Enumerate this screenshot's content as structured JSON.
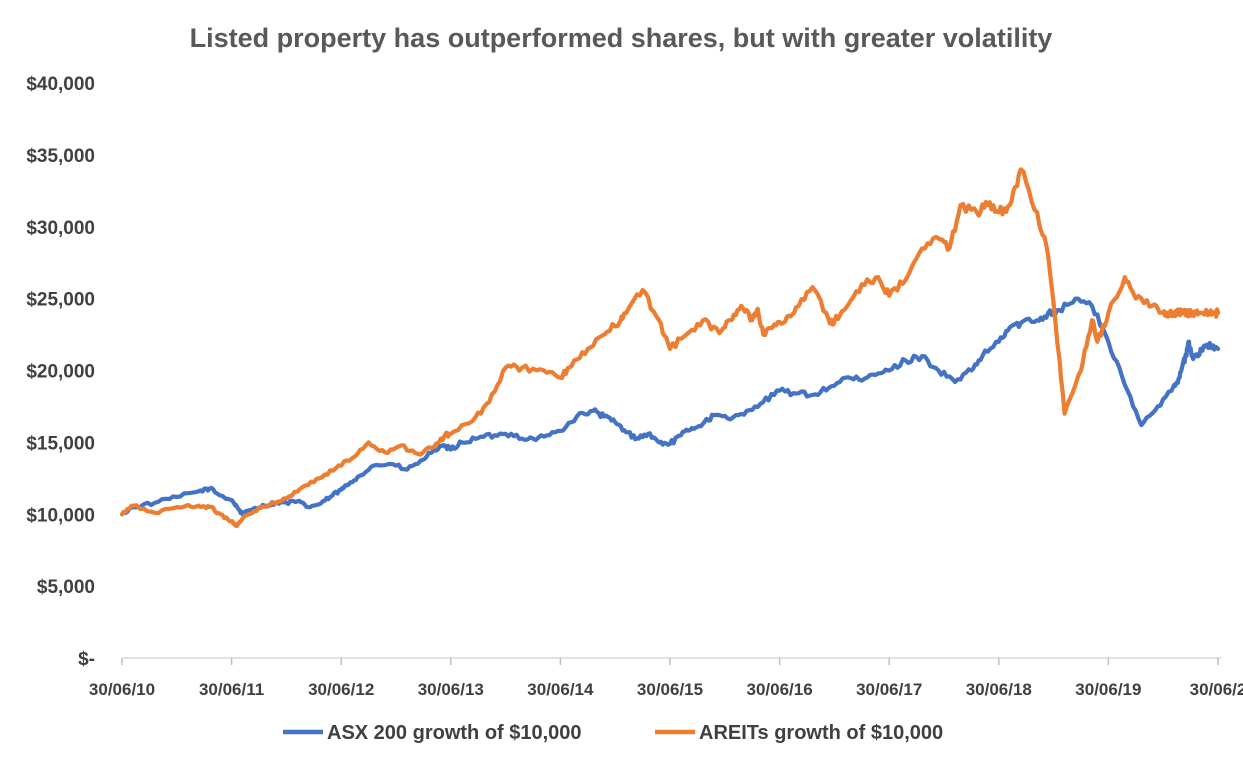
{
  "chart_data": {
    "type": "line",
    "title": "Listed property has outperformed shares, but with greater volatility",
    "xlabel": "",
    "ylabel": "",
    "ylim": [
      0,
      40000
    ],
    "yticks": [
      0,
      5000,
      10000,
      15000,
      20000,
      25000,
      30000,
      35000,
      40000
    ],
    "ytick_labels": [
      "$-",
      "$5,000",
      "$10,000",
      "$15,000",
      "$20,000",
      "$25,000",
      "$30,000",
      "$35,000",
      "$40,000"
    ],
    "xlim": [
      2010.0,
      2020.0
    ],
    "xticks": [
      2010,
      2011,
      2012,
      2013,
      2014,
      2015,
      2016,
      2017,
      2018,
      2019,
      2020
    ],
    "xtick_labels": [
      "30/06/10",
      "30/06/11",
      "30/06/12",
      "30/06/13",
      "30/06/14",
      "30/06/15",
      "30/06/16",
      "30/06/17",
      "30/06/18",
      "30/06/19",
      "30/06/2"
    ],
    "gridlines": false,
    "legend_position": "bottom",
    "series": [
      {
        "name": "ASX 200 growth of $10,000",
        "color": "#4472C4",
        "x": [
          2010.0,
          2010.1,
          2010.3,
          2010.5,
          2010.7,
          2010.8,
          2010.9,
          2011.0,
          2011.05,
          2011.1,
          2011.2,
          2011.3,
          2011.4,
          2011.5,
          2011.6,
          2011.7,
          2011.8,
          2011.9,
          2012.0,
          2012.05,
          2012.15,
          2012.3,
          2012.45,
          2012.6,
          2012.75,
          2012.85,
          2012.95,
          2013.0,
          2013.1,
          2013.25,
          2013.4,
          2013.55,
          2013.7,
          2013.85,
          2014.0,
          2014.15,
          2014.3,
          2014.4,
          2014.5,
          2014.6,
          2014.7,
          2014.8,
          2014.9,
          2015.0,
          2015.1,
          2015.2,
          2015.3,
          2015.4,
          2015.55,
          2015.7,
          2015.85,
          2016.0,
          2016.15,
          2016.3,
          2016.45,
          2016.6,
          2016.75,
          2016.9,
          2017.0,
          2017.15,
          2017.3,
          2017.45,
          2017.6,
          2017.75,
          2017.85,
          2018.0,
          2018.1,
          2018.2,
          2018.35,
          2018.45,
          2018.55,
          2018.7,
          2018.85,
          2019.0,
          2019.15,
          2019.3,
          2019.45,
          2019.6,
          2019.65,
          2019.68,
          2019.71,
          2019.73,
          2019.76,
          2019.8,
          2019.85,
          2019.9,
          2019.95,
          2020.0
        ],
        "values": [
          10000,
          10500,
          10800,
          11200,
          11600,
          11800,
          11300,
          11000,
          10500,
          10000,
          10400,
          10600,
          10800,
          10800,
          10900,
          10500,
          10700,
          11200,
          11700,
          12000,
          12600,
          13400,
          13500,
          13100,
          13800,
          14500,
          14700,
          14500,
          15000,
          15300,
          15500,
          15600,
          15200,
          15400,
          15800,
          16800,
          17200,
          16800,
          16400,
          15700,
          15300,
          15600,
          15000,
          14900,
          15500,
          16000,
          16300,
          16900,
          16600,
          17200,
          17800,
          18600,
          18400,
          18300,
          18800,
          19500,
          19300,
          19800,
          20000,
          20700,
          21000,
          20000,
          19200,
          20000,
          21000,
          22000,
          23000,
          23300,
          23500,
          24000,
          24200,
          25000,
          24500,
          22000,
          19000,
          16200,
          17500,
          19000,
          19500,
          20500,
          21000,
          22000,
          21000,
          21000,
          21500,
          21800,
          21600,
          21500
        ]
      },
      {
        "name": "AREITs growth of $10,000",
        "color": "#ED7D31",
        "x": [
          2010.0,
          2010.1,
          2010.3,
          2010.5,
          2010.7,
          2010.8,
          2010.9,
          2011.0,
          2011.05,
          2011.1,
          2011.2,
          2011.35,
          2011.5,
          2011.65,
          2011.8,
          2011.95,
          2012.1,
          2012.25,
          2012.4,
          2012.55,
          2012.7,
          2012.85,
          2012.9,
          2012.95,
          2013.0,
          2013.2,
          2013.35,
          2013.5,
          2013.65,
          2013.85,
          2014.0,
          2014.1,
          2014.25,
          2014.4,
          2014.55,
          2014.6,
          2014.75,
          2014.9,
          2015.0,
          2015.15,
          2015.3,
          2015.45,
          2015.55,
          2015.65,
          2015.75,
          2015.8,
          2015.85,
          2015.95,
          2016.05,
          2016.15,
          2016.3,
          2016.45,
          2016.5,
          2016.6,
          2016.75,
          2016.9,
          2017.0,
          2017.15,
          2017.3,
          2017.45,
          2017.55,
          2017.65,
          2017.8,
          2017.9,
          2018.0,
          2018.1,
          2018.2,
          2018.35,
          2018.45,
          2018.55,
          2018.6,
          2018.75,
          2018.85,
          2018.9,
          2019.0,
          2019.15,
          2019.25,
          2019.4,
          2019.5,
          2019.55,
          2019.6,
          2019.63,
          2019.65,
          2019.68,
          2019.71,
          2019.73,
          2019.76,
          2019.8,
          2019.85,
          2019.9,
          2019.95,
          2020.0
        ],
        "values": [
          10000,
          10600,
          10100,
          10500,
          10600,
          10500,
          10000,
          9500,
          9200,
          9700,
          10200,
          10700,
          11100,
          11900,
          12500,
          13200,
          13900,
          15000,
          14300,
          14800,
          14200,
          14700,
          15100,
          15500,
          15600,
          16500,
          17800,
          20200,
          20200,
          20000,
          19500,
          20300,
          21500,
          22500,
          23500,
          24000,
          25600,
          23500,
          21500,
          22500,
          23500,
          22600,
          23500,
          24500,
          23500,
          24300,
          22500,
          23200,
          23400,
          24400,
          25800,
          23500,
          23400,
          24300,
          26000,
          26500,
          25200,
          26300,
          28500,
          29200,
          28500,
          31500,
          31000,
          31500,
          31000,
          31500,
          34000,
          31000,
          28000,
          21000,
          17000,
          20000,
          23500,
          22000,
          24000,
          26500,
          25000,
          24500,
          24000,
          24000,
          24000,
          24000,
          24000,
          24000,
          24000,
          24000,
          24000,
          24000,
          24000,
          24000,
          24000,
          24000
        ]
      }
    ]
  }
}
